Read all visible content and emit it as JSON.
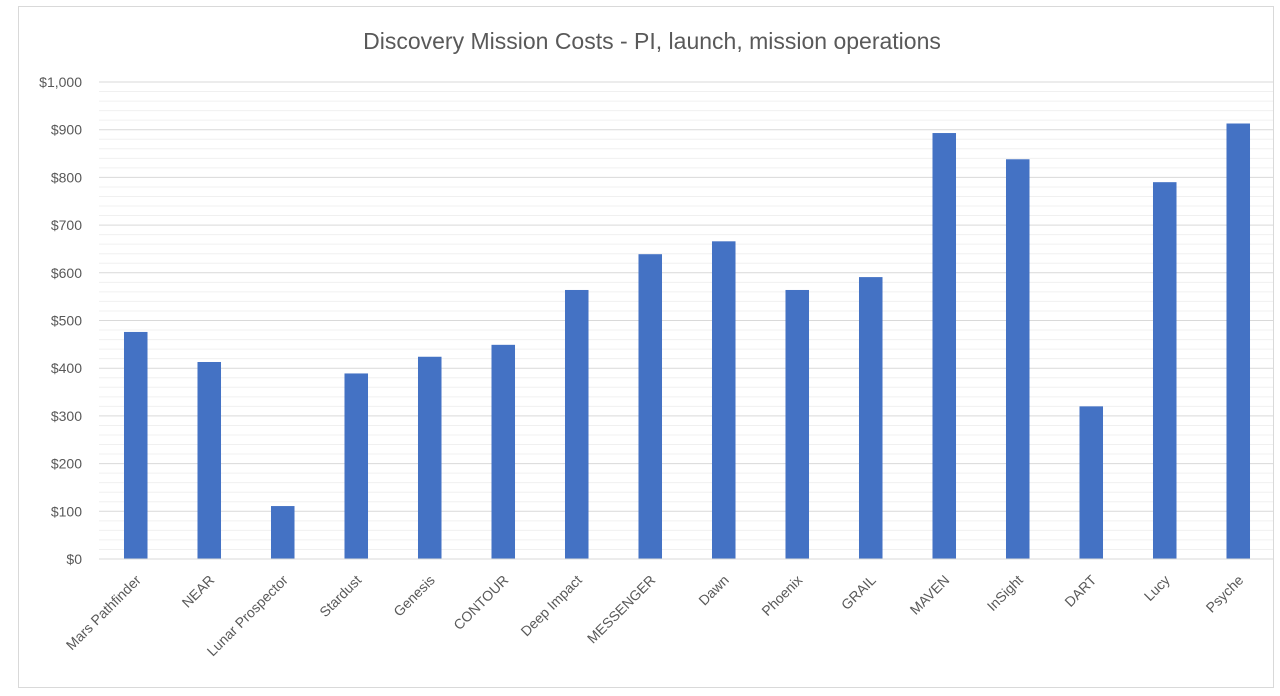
{
  "chart_data": {
    "type": "bar",
    "title": "Discovery Mission Costs - PI, launch, mission operations",
    "xlabel": "",
    "ylabel": "",
    "ylim": [
      0,
      1000
    ],
    "yticks": [
      0,
      100,
      200,
      300,
      400,
      500,
      600,
      700,
      800,
      900,
      1000
    ],
    "ytick_labels": [
      "$0",
      "$100",
      "$200",
      "$300",
      "$400",
      "$500",
      "$600",
      "$700",
      "$800",
      "$900",
      "$1,000"
    ],
    "minor_gridlines": true,
    "grid": true,
    "legend": "none",
    "bar_color": "#4472C4",
    "categories": [
      "Mars Pathfinder",
      "NEAR",
      "Lunar Prospector",
      "Stardust",
      "Genesis",
      "CONTOUR",
      "Deep Impact",
      "MESSENGER",
      "Dawn",
      "Phoenix",
      "GRAIL",
      "MAVEN",
      "InSight",
      "DART",
      "Lucy",
      "Psyche"
    ],
    "values": [
      476,
      413,
      111,
      389,
      424,
      449,
      564,
      639,
      666,
      564,
      591,
      893,
      838,
      320,
      790,
      913
    ]
  }
}
